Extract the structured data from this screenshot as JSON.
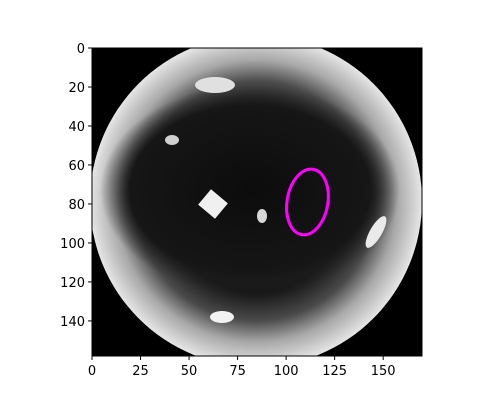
{
  "chart_data": {
    "type": "image",
    "xlim": [
      0,
      170
    ],
    "ylim": [
      158,
      0
    ],
    "xticks": [
      0,
      25,
      50,
      75,
      100,
      125,
      150
    ],
    "yticks": [
      0,
      20,
      40,
      60,
      80,
      100,
      120,
      140
    ],
    "ellipse": {
      "cx": 111,
      "cy": 79,
      "rx": 10.5,
      "ry": 17,
      "angle": 10,
      "color": "#ff00ff"
    }
  }
}
